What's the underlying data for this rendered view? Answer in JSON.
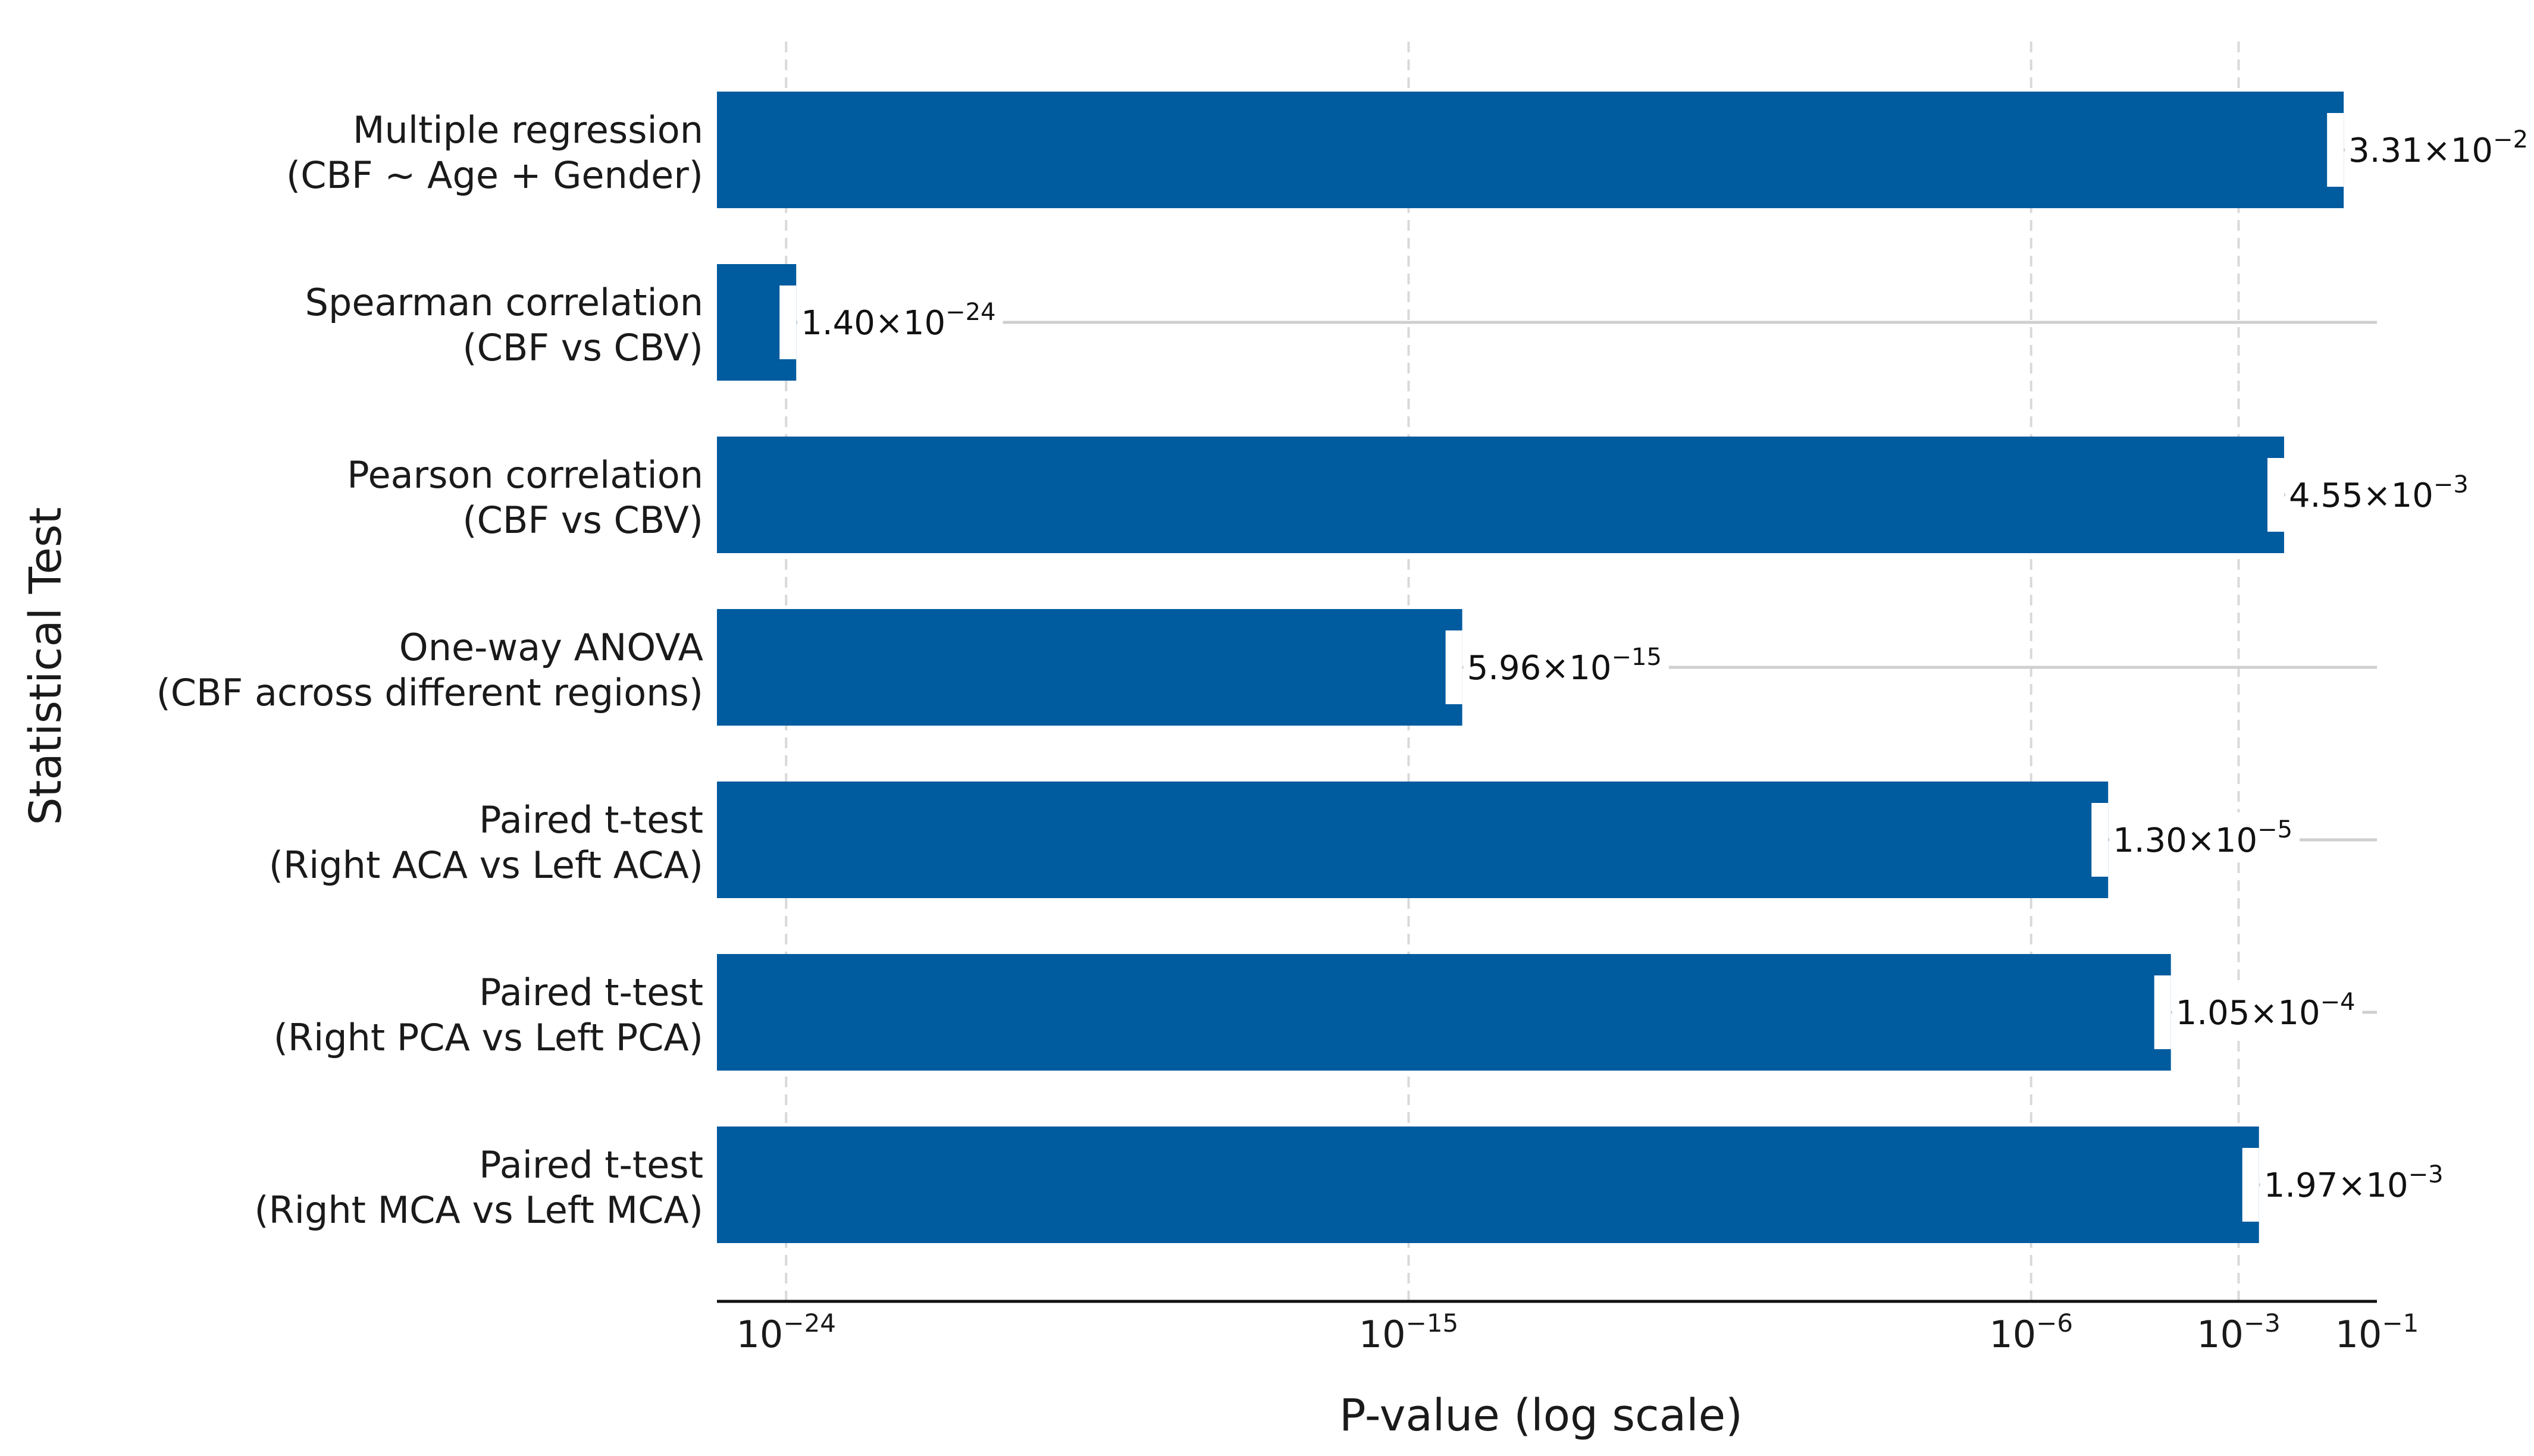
{
  "chart_data": {
    "type": "bar",
    "orientation": "horizontal",
    "xscale": "log",
    "xlabel": "P-value (log scale)",
    "ylabel": "Statistical Test",
    "xlim": [
      1e-25,
      0.1
    ],
    "grid": "x-dashed",
    "bar_color": "#005b9f",
    "categories": [
      {
        "line1": "Multiple regression",
        "line2": "(CBF ~ Age + Gender)"
      },
      {
        "line1": "Spearman correlation",
        "line2": "(CBF vs CBV)"
      },
      {
        "line1": "Pearson correlation",
        "line2": "(CBF vs CBV)"
      },
      {
        "line1": "One-way ANOVA",
        "line2": "(CBF across different regions)"
      },
      {
        "line1": "Paired t-test",
        "line2": "(Right ACA vs Left ACA)"
      },
      {
        "line1": "Paired t-test",
        "line2": "(Right PCA vs Left PCA)"
      },
      {
        "line1": "Paired t-test",
        "line2": "(Right MCA vs Left MCA)"
      }
    ],
    "values": [
      0.0331,
      1.4e-24,
      0.00455,
      5.96e-15,
      1.3e-05,
      0.000105,
      0.00197
    ],
    "data_labels": [
      {
        "mantissa": "3.31×10",
        "exponent": "−2"
      },
      {
        "mantissa": "1.40×10",
        "exponent": "−24"
      },
      {
        "mantissa": "4.55×10",
        "exponent": "−3"
      },
      {
        "mantissa": "5.96×10",
        "exponent": "−15"
      },
      {
        "mantissa": "1.30×10",
        "exponent": "−5"
      },
      {
        "mantissa": "1.05×10",
        "exponent": "−4"
      },
      {
        "mantissa": "1.97×10",
        "exponent": "−3"
      }
    ],
    "xticks": [
      {
        "value": 1e-24,
        "base": "10",
        "exponent": "−24"
      },
      {
        "value": 1e-15,
        "base": "10",
        "exponent": "−15"
      },
      {
        "value": 1e-06,
        "base": "10",
        "exponent": "−6"
      },
      {
        "value": 0.001,
        "base": "10",
        "exponent": "−3"
      },
      {
        "value": 0.1,
        "base": "10",
        "exponent": "−1"
      }
    ]
  }
}
